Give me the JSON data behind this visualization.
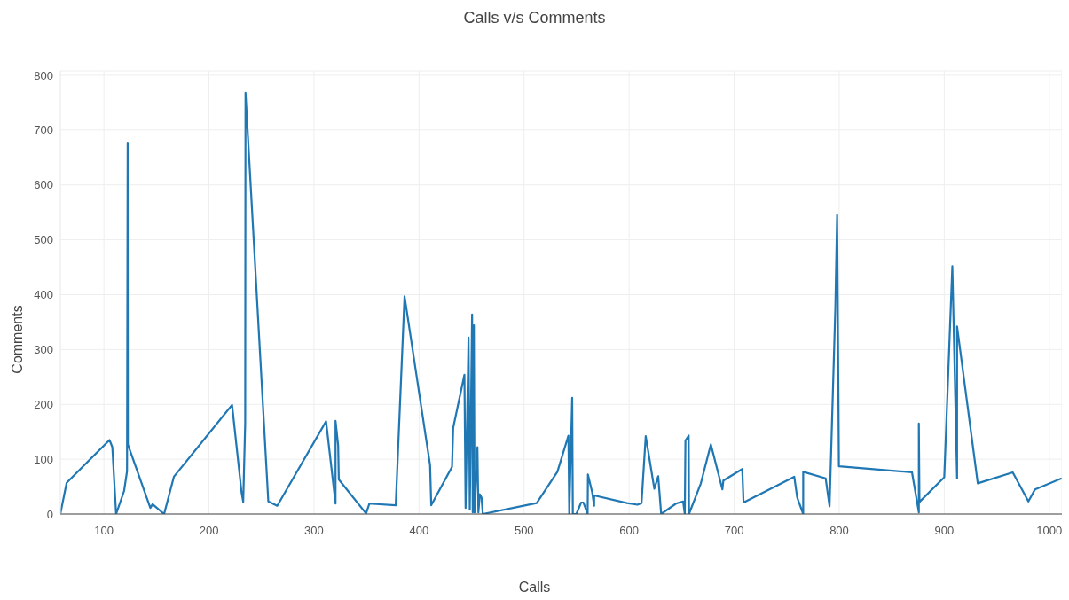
{
  "chart_data": {
    "type": "line",
    "title": "Calls v/s Comments",
    "xlabel": "Calls",
    "ylabel": "Comments",
    "x": [
      58.5,
      64.5,
      105.3,
      108,
      111.6,
      119.2,
      122,
      122.6,
      122.8,
      144.2,
      146.3,
      157.3,
      166.6,
      222,
      231,
      232.6,
      234.5,
      234.8,
      256.5,
      265,
      311.5,
      320.5,
      320.5,
      323,
      323.6,
      349.6,
      352.7,
      377.8,
      386.2,
      410.5,
      411.6,
      431.4,
      432.5,
      443.2,
      444.3,
      447.1,
      448.3,
      450.5,
      451.1,
      452.2,
      452.9,
      455.6,
      456.5,
      457.9,
      459.5,
      460.7,
      512,
      531.7,
      542.2,
      543,
      545.8,
      546.4,
      549.8,
      554.3,
      556.5,
      560.5,
      560.8,
      564.8,
      566.7,
      566.7,
      598,
      607.9,
      611.8,
      615.8,
      624,
      627.7,
      630.5,
      644.6,
      651.4,
      653,
      653.6,
      656.7,
      657,
      668.3,
      677.8,
      688.8,
      689.7,
      707.7,
      708.9,
      757.2,
      760,
      765.7,
      765.7,
      787.1,
      790.8,
      796.3,
      798,
      799.7,
      869.3,
      875.8,
      875.8,
      876.4,
      900,
      907.7,
      912.2,
      912.2,
      931.9,
      965.2,
      980.1,
      986.4,
      1011.8
    ],
    "series": [
      {
        "color": "#1f77b4",
        "values": [
          0,
          57,
          135,
          122,
          0,
          42,
          78,
          677,
          127,
          11,
          18,
          0,
          68,
          199,
          40,
          22,
          165,
          768,
          23,
          15,
          169,
          19,
          170,
          125,
          63,
          1,
          19,
          16,
          397,
          89,
          16,
          86,
          157,
          254,
          11,
          322,
          8,
          364,
          3,
          344,
          3,
          122,
          3,
          36,
          30,
          0,
          20,
          77,
          143,
          0,
          212,
          0,
          0,
          21,
          21,
          0,
          72,
          40,
          15,
          34,
          20,
          17,
          20,
          142,
          46,
          69,
          0,
          19,
          23,
          0,
          134,
          143,
          0,
          56,
          127,
          45,
          61,
          82,
          21,
          68,
          30,
          0,
          77,
          65,
          14,
          375,
          545,
          87,
          76,
          3,
          165,
          22,
          67,
          452,
          65,
          342,
          56,
          76,
          23,
          45,
          65
        ]
      }
    ],
    "xlim": [
      58.5,
      1012
    ],
    "xticks": [
      100,
      200,
      300,
      400,
      500,
      600,
      700,
      800,
      900,
      1000
    ],
    "ylim": [
      0,
      808
    ],
    "yticks": [
      0,
      100,
      200,
      300,
      400,
      500,
      600,
      700,
      800
    ],
    "grid": true
  }
}
